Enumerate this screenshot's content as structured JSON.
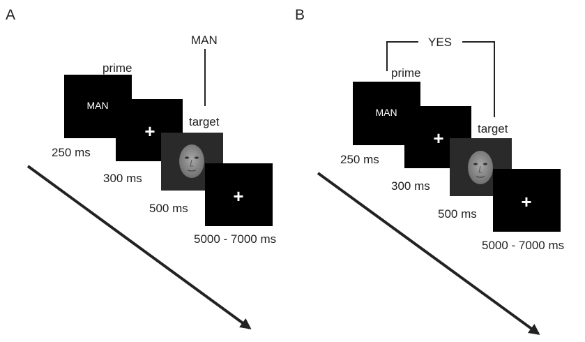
{
  "panels": [
    {
      "letter": "A",
      "prime_label": "prime",
      "target_label": "target",
      "prime_word": "MAN",
      "bracket_word": "MAN",
      "cross": "+",
      "durations": {
        "prime": "250 ms",
        "fixation": "300 ms",
        "target": "500 ms",
        "iti": "5000 - 7000 ms"
      }
    },
    {
      "letter": "B",
      "prime_label": "prime",
      "target_label": "target",
      "prime_word": "MAN",
      "bracket_word": "YES",
      "cross": "+",
      "durations": {
        "prime": "250 ms",
        "fixation": "300 ms",
        "target": "500 ms",
        "iti": "5000 - 7000 ms"
      }
    }
  ],
  "colors": {
    "screen": "#000000",
    "face_background": "#2a2a2a",
    "face": "#8c8c8c",
    "arrow": "#222222"
  },
  "icons": {
    "face": "face-photo-icon",
    "arrow": "time-arrow-icon"
  }
}
